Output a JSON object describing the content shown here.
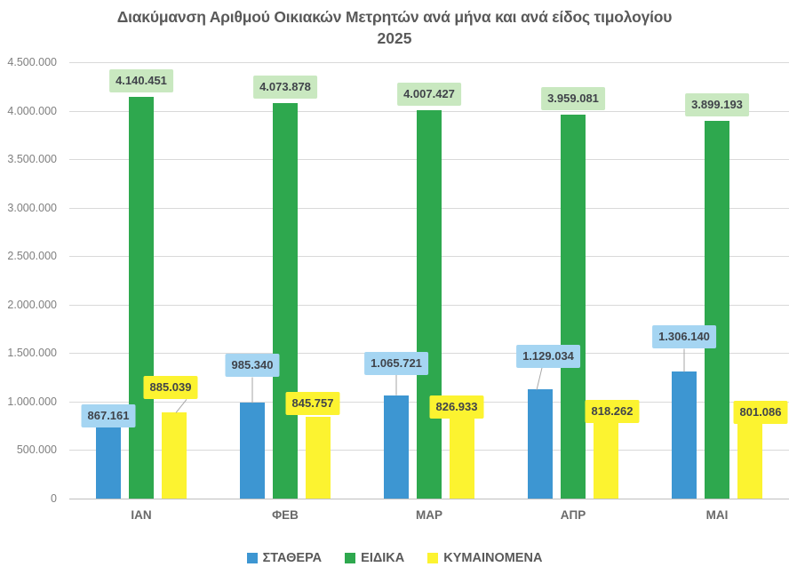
{
  "chart_data": {
    "type": "bar",
    "title": "Διακύμανση Αριθμού Οικιακών Μετρητών ανά μήνα και ανά είδος τιμολογίου",
    "subtitle": "2025",
    "xlabel": "",
    "ylabel": "",
    "categories": [
      "ΙΑΝ",
      "ΦΕΒ",
      "ΜΑΡ",
      "ΑΠΡ",
      "ΜΑΙ"
    ],
    "series": [
      {
        "name": "ΣΤΑΘΕΡΑ",
        "color": "#3d96d2",
        "label_bg": "#a5d5f2",
        "values": [
          867161,
          985340,
          1065721,
          1129034,
          1306140
        ],
        "labels": [
          "867.161",
          "985.340",
          "1.065.721",
          "1.129.034",
          "1.306.140"
        ]
      },
      {
        "name": "ΕΙΔΙΚΑ",
        "color": "#2ea84e",
        "label_bg": "#c9e8c0",
        "values": [
          4140451,
          4073878,
          4007427,
          3959081,
          3899193
        ],
        "labels": [
          "4.140.451",
          "4.073.878",
          "4.007.427",
          "3.959.081",
          "3.899.193"
        ]
      },
      {
        "name": "ΚΥΜΑΙΝΟΜΕΝΑ",
        "color": "#fcf330",
        "label_bg": "#fcf330",
        "values": [
          885039,
          845757,
          826933,
          818262,
          801086
        ],
        "labels": [
          "885.039",
          "845.757",
          "826.933",
          "818.262",
          "801.086"
        ]
      }
    ],
    "ylim": [
      0,
      4500000
    ],
    "ytick_step": 500000,
    "ytick_labels": [
      "0",
      "500.000",
      "1.000.000",
      "1.500.000",
      "2.000.000",
      "2.500.000",
      "3.000.000",
      "3.500.000",
      "4.000.000",
      "4.500.000"
    ],
    "grid": true,
    "legend_position": "bottom",
    "leader_line_color": "#a6a6a6",
    "gridline_color": "#d9d9d9"
  }
}
